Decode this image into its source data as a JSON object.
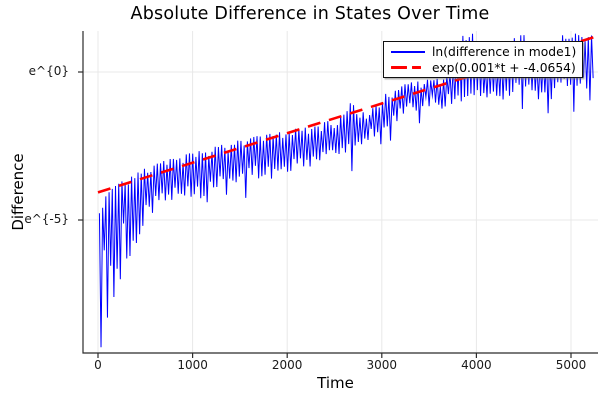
{
  "chart_data": {
    "type": "line",
    "title": "Absolute Difference in States Over Time",
    "xlabel": "Time",
    "ylabel": "Difference",
    "x_axis": {
      "ticks": [
        0,
        1000,
        2000,
        3000,
        4000,
        5000
      ],
      "tick_labels": [
        "0",
        "1000",
        "2000",
        "3000",
        "4000",
        "5000"
      ],
      "range": [
        -170,
        5290
      ]
    },
    "y_axis": {
      "scale": "ln",
      "ticks": [
        {
          "label": "e^{0}",
          "ln": 0
        },
        {
          "label": "e^{-5}",
          "ln": -5
        }
      ],
      "range_ln": [
        -9.5,
        1.39
      ]
    },
    "grid": true,
    "legend_position": "top-right",
    "background": "#ffffff",
    "grid_color": "#e8e8e8",
    "axis_color": "#2b2b2b",
    "series": [
      {
        "name": "ln(difference in mode1)",
        "color": "#0000ff",
        "style": "solid",
        "kind": "oscillating-band",
        "line_width": 1,
        "t_start": 15,
        "t_end": 5250,
        "osc_half_period_t": 17,
        "envelope": {
          "t": [
            10,
            100,
            200,
            300,
            500,
            700,
            900,
            1100,
            1300,
            1500,
            1700,
            1900,
            2100,
            2300,
            2500,
            2600,
            2680,
            2760,
            2900,
            3050,
            3200,
            3350,
            3500,
            3650,
            3750,
            3850,
            3980,
            4080,
            4250,
            4400,
            4500,
            4600,
            4750,
            4900,
            5010,
            5250
          ],
          "upper_ln": [
            -4.6,
            -4.1,
            -3.8,
            -3.6,
            -3.25,
            -3.0,
            -2.8,
            -2.65,
            -2.45,
            -2.3,
            -2.15,
            -2.05,
            -1.9,
            -1.75,
            -1.6,
            -1.35,
            -1.0,
            -1.45,
            -1.15,
            -0.7,
            -0.45,
            -0.3,
            -0.25,
            -0.2,
            0.2,
            1.25,
            1.3,
            0.45,
            0.5,
            1.25,
            1.3,
            0.6,
            0.55,
            1.25,
            1.3,
            1.3
          ],
          "lower_ln": [
            -6.2,
            -6.1,
            -5.5,
            -5.0,
            -4.5,
            -4.3,
            -4.15,
            -4.2,
            -3.8,
            -3.6,
            -3.5,
            -3.45,
            -3.2,
            -3.05,
            -2.9,
            -2.75,
            -2.6,
            -2.4,
            -2.15,
            -1.8,
            -1.55,
            -1.3,
            -1.1,
            -1.15,
            -1.0,
            -0.9,
            -0.85,
            -0.8,
            -1.0,
            -0.7,
            -0.6,
            -0.8,
            -0.9,
            -0.6,
            -0.5,
            -0.5
          ]
        },
        "deep_spikes": [
          [
            20,
            -9.3
          ],
          [
            90,
            -8.3
          ],
          [
            160,
            -7.6
          ],
          [
            230,
            -7.0
          ],
          [
            300,
            -6.3
          ],
          [
            380,
            -5.7
          ],
          [
            460,
            -5.2
          ],
          [
            1150,
            -4.4
          ],
          [
            1840,
            -3.6
          ],
          [
            2660,
            -3.35
          ],
          [
            4470,
            -1.25
          ]
        ],
        "early_spike_cutoff_t": 650
      },
      {
        "name": "exp(0.001*t + -4.0654)",
        "color": "#ff0000",
        "style": "dashed",
        "kind": "fit-line",
        "line_width": 2.6,
        "dash": [
          13,
          9
        ],
        "slope": 0.001,
        "intercept": -4.0654,
        "t_start": 0,
        "t_end": 5250
      }
    ]
  }
}
